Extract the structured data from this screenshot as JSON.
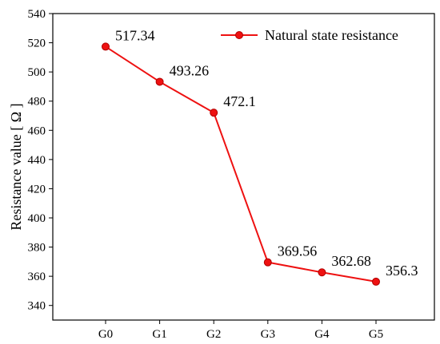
{
  "chart_data": {
    "type": "line",
    "title": "",
    "xlabel": "",
    "ylabel": "Resistance value [ Ω ]",
    "categories": [
      "G0",
      "G1",
      "G2",
      "G3",
      "G4",
      "G5"
    ],
    "series": [
      {
        "name": "Natural state resistance",
        "values": [
          517.34,
          493.26,
          472.1,
          369.56,
          362.68,
          356.3
        ],
        "data_labels": [
          "517.34",
          "493.26",
          "472.1",
          "369.56",
          "362.68",
          "356.3"
        ],
        "color": "#ee1111"
      }
    ],
    "ylim": [
      330,
      540
    ],
    "yticks": [
      340,
      360,
      380,
      400,
      420,
      440,
      460,
      480,
      500,
      520,
      540
    ],
    "grid": false,
    "legend_position": "top-right"
  }
}
